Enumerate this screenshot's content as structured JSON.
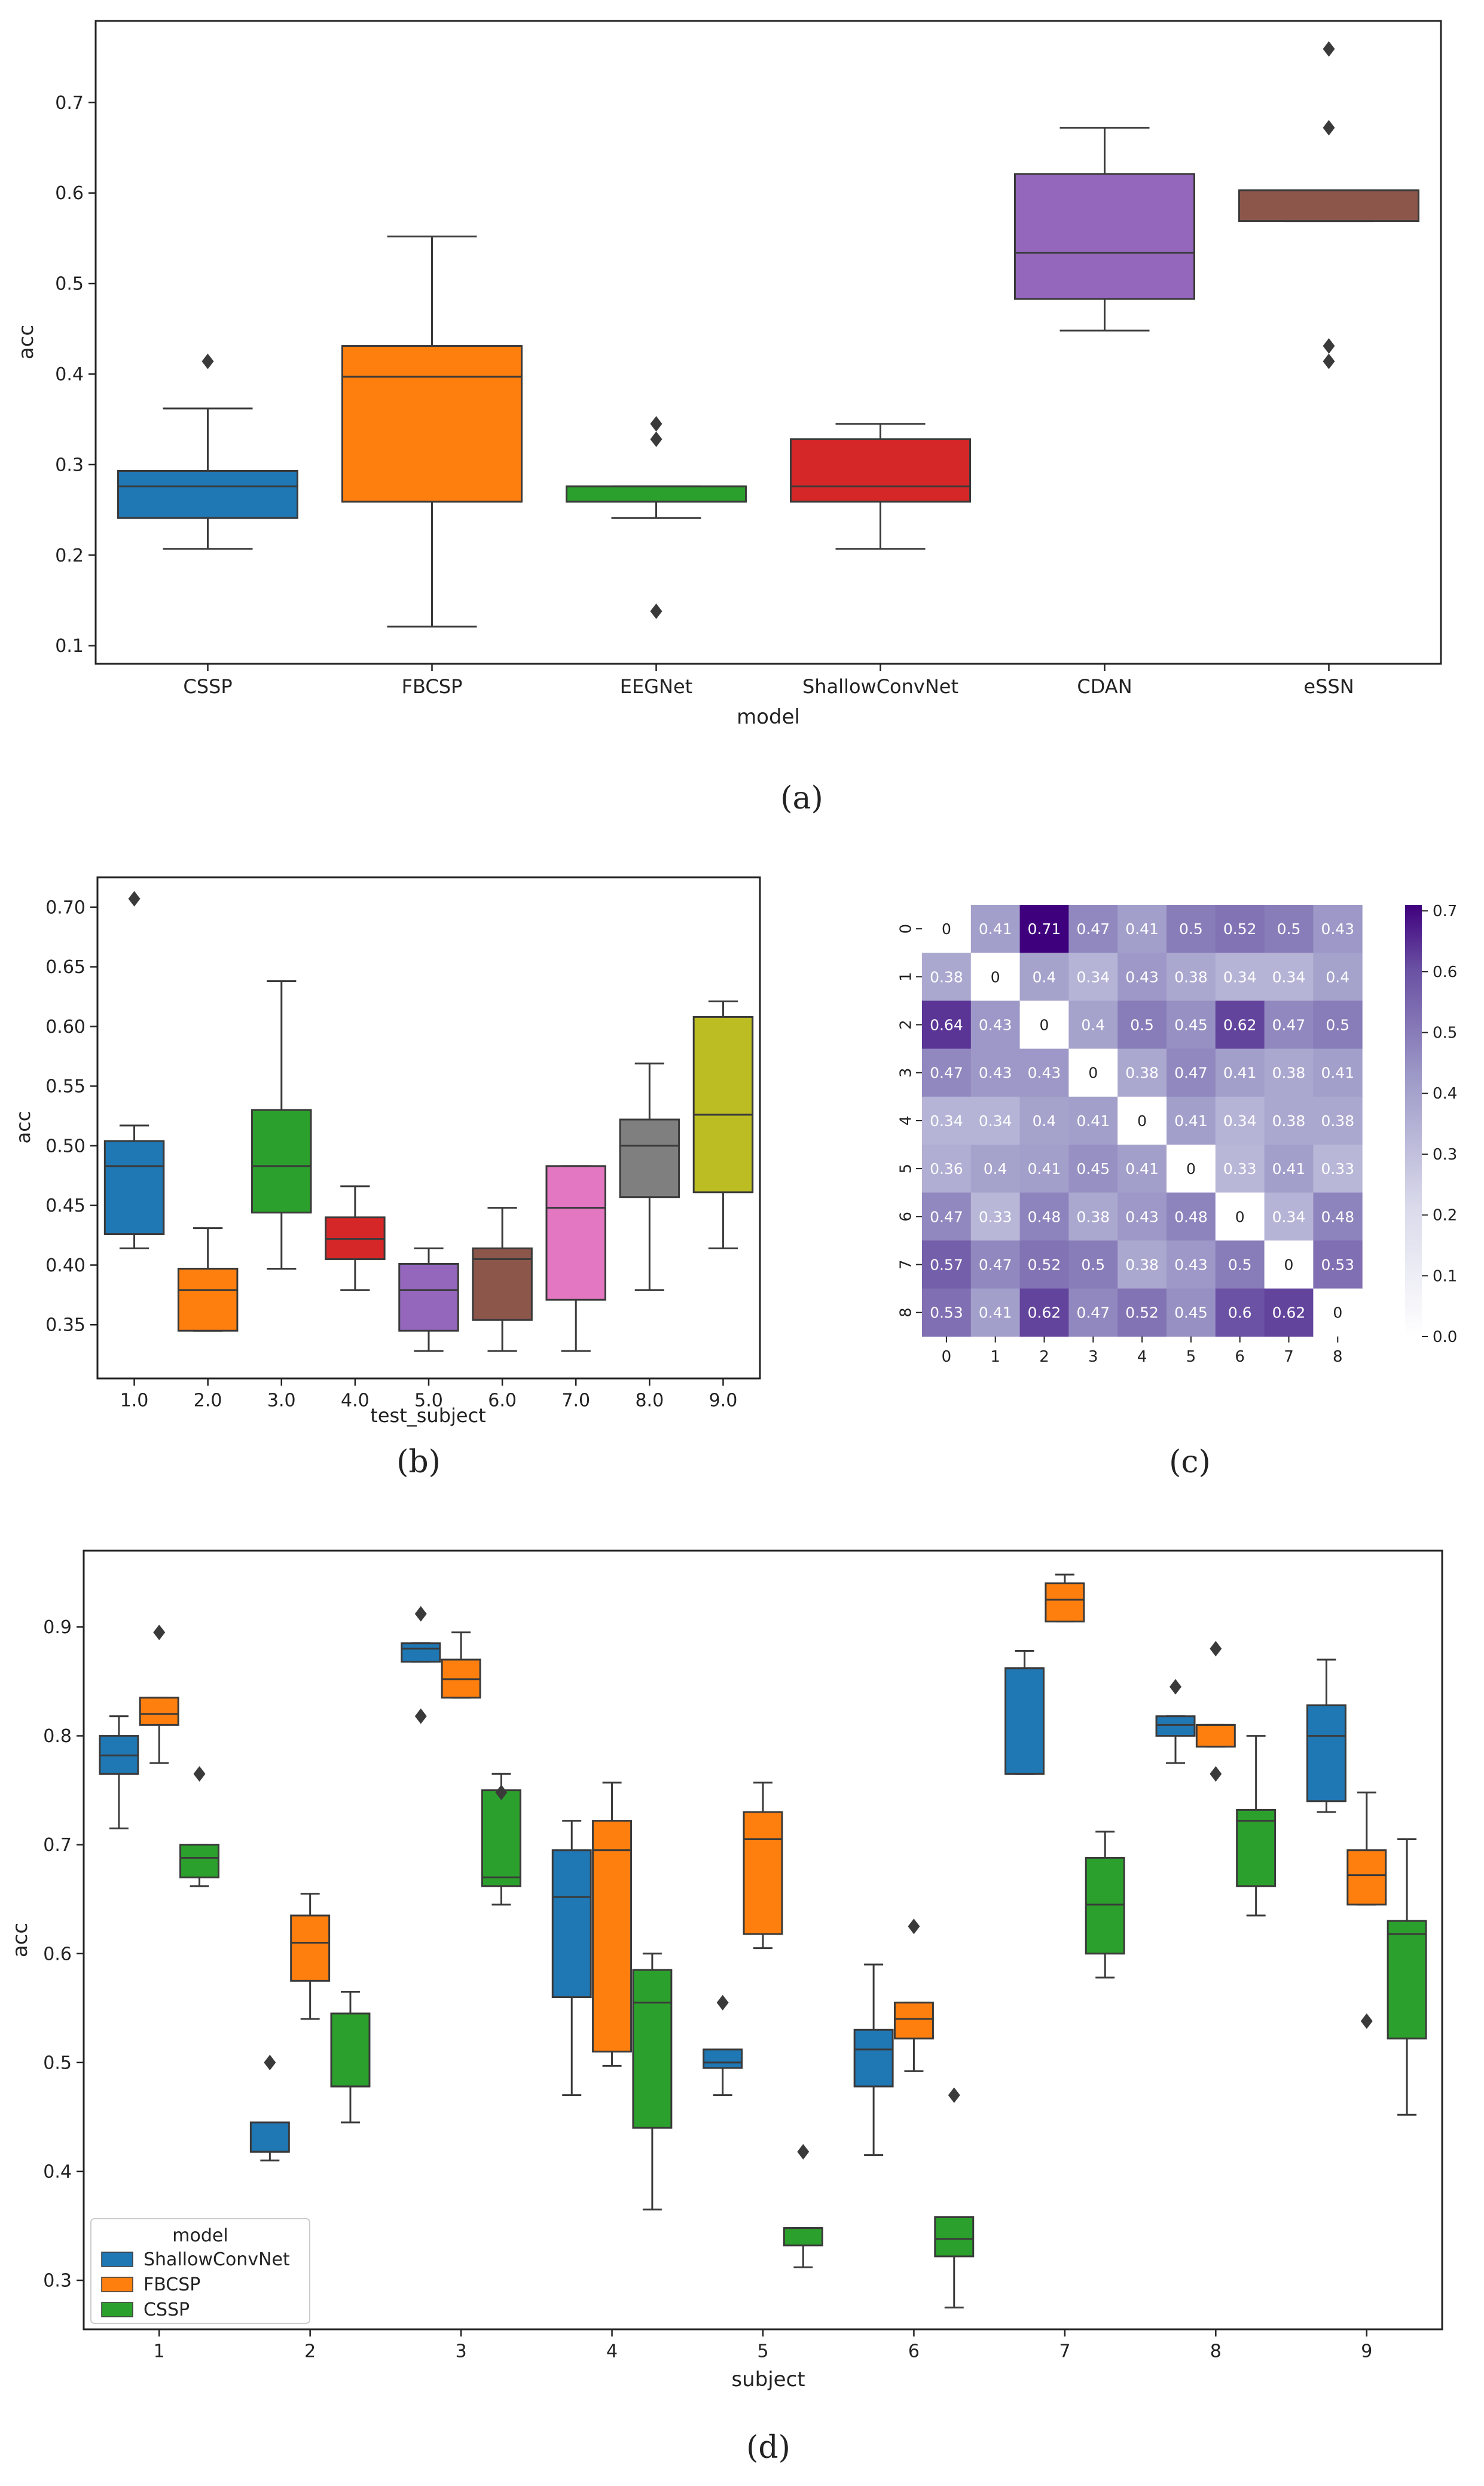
{
  "colors": {
    "blue": "#1f77b4",
    "orange": "#ff7f0e",
    "green": "#2ca02c",
    "red": "#d62728",
    "purple": "#9467bd",
    "brown": "#8c564b",
    "pink": "#e377c2",
    "gray": "#7f7f7f",
    "olive": "#bcbd22",
    "heat_low": "#ffffff",
    "heat_high": "#3f007d"
  },
  "chart_data": [
    {
      "id": "a",
      "type": "box",
      "caption": "(a)",
      "xlabel": "model",
      "ylabel": "acc",
      "ylim": [
        0.08,
        0.79
      ],
      "yticks": [
        "0.1",
        "0.2",
        "0.3",
        "0.4",
        "0.5",
        "0.6",
        "0.7"
      ],
      "categories": [
        "CSSP",
        "FBCSP",
        "EEGNet",
        "ShallowConvNet",
        "CDAN",
        "eSSN"
      ],
      "boxes": [
        {
          "category": "CSSP",
          "color": "blue",
          "whisker_low": 0.207,
          "q1": 0.241,
          "median": 0.276,
          "q3": 0.293,
          "whisker_high": 0.362,
          "outliers": [
            0.414
          ]
        },
        {
          "category": "FBCSP",
          "color": "orange",
          "whisker_low": 0.121,
          "q1": 0.259,
          "median": 0.397,
          "q3": 0.431,
          "whisker_high": 0.552,
          "outliers": []
        },
        {
          "category": "EEGNet",
          "color": "green",
          "whisker_low": 0.241,
          "q1": 0.259,
          "median": 0.276,
          "q3": 0.276,
          "whisker_high": 0.276,
          "outliers": [
            0.138,
            0.328,
            0.345
          ]
        },
        {
          "category": "ShallowConvNet",
          "color": "red",
          "whisker_low": 0.207,
          "q1": 0.259,
          "median": 0.276,
          "q3": 0.328,
          "whisker_high": 0.345,
          "outliers": []
        },
        {
          "category": "CDAN",
          "color": "purple",
          "whisker_low": 0.448,
          "q1": 0.483,
          "median": 0.534,
          "q3": 0.621,
          "whisker_high": 0.672,
          "outliers": []
        },
        {
          "category": "eSSN",
          "color": "brown",
          "whisker_low": 0.569,
          "q1": 0.569,
          "median": 0.603,
          "q3": 0.603,
          "whisker_high": 0.603,
          "outliers": [
            0.414,
            0.431,
            0.672,
            0.759
          ]
        }
      ]
    },
    {
      "id": "b",
      "type": "box",
      "caption": "(b)",
      "xlabel": "test_subject",
      "ylabel": "acc",
      "ylim": [
        0.305,
        0.725
      ],
      "yticks": [
        "0.35",
        "0.40",
        "0.45",
        "0.50",
        "0.55",
        "0.60",
        "0.65",
        "0.70"
      ],
      "categories": [
        "1.0",
        "2.0",
        "3.0",
        "4.0",
        "5.0",
        "6.0",
        "7.0",
        "8.0",
        "9.0"
      ],
      "boxes": [
        {
          "category": "1.0",
          "color": "blue",
          "whisker_low": 0.414,
          "q1": 0.426,
          "median": 0.483,
          "q3": 0.504,
          "whisker_high": 0.517,
          "outliers": [
            0.707
          ]
        },
        {
          "category": "2.0",
          "color": "orange",
          "whisker_low": 0.345,
          "q1": 0.345,
          "median": 0.379,
          "q3": 0.397,
          "whisker_high": 0.431,
          "outliers": []
        },
        {
          "category": "3.0",
          "color": "green",
          "whisker_low": 0.397,
          "q1": 0.444,
          "median": 0.483,
          "q3": 0.53,
          "whisker_high": 0.638,
          "outliers": []
        },
        {
          "category": "4.0",
          "color": "red",
          "whisker_low": 0.379,
          "q1": 0.405,
          "median": 0.422,
          "q3": 0.44,
          "whisker_high": 0.466,
          "outliers": []
        },
        {
          "category": "5.0",
          "color": "purple",
          "whisker_low": 0.328,
          "q1": 0.345,
          "median": 0.379,
          "q3": 0.401,
          "whisker_high": 0.414,
          "outliers": []
        },
        {
          "category": "6.0",
          "color": "brown",
          "whisker_low": 0.328,
          "q1": 0.354,
          "median": 0.405,
          "q3": 0.414,
          "whisker_high": 0.448,
          "outliers": []
        },
        {
          "category": "7.0",
          "color": "pink",
          "whisker_low": 0.328,
          "q1": 0.371,
          "median": 0.448,
          "q3": 0.483,
          "whisker_high": 0.483,
          "outliers": []
        },
        {
          "category": "8.0",
          "color": "gray",
          "whisker_low": 0.379,
          "q1": 0.457,
          "median": 0.5,
          "q3": 0.522,
          "whisker_high": 0.569,
          "outliers": []
        },
        {
          "category": "9.0",
          "color": "olive",
          "whisker_low": 0.414,
          "q1": 0.461,
          "median": 0.526,
          "q3": 0.608,
          "whisker_high": 0.621,
          "outliers": []
        }
      ]
    },
    {
      "id": "c",
      "type": "heatmap",
      "caption": "(c)",
      "xticks": [
        "0",
        "1",
        "2",
        "3",
        "4",
        "5",
        "6",
        "7",
        "8"
      ],
      "yticks": [
        "0",
        "1",
        "2",
        "3",
        "4",
        "5",
        "6",
        "7",
        "8"
      ],
      "vmin": 0.0,
      "vmax": 0.71,
      "colorbar_ticks": [
        "0.0",
        "0.1",
        "0.2",
        "0.3",
        "0.4",
        "0.5",
        "0.6",
        "0.7"
      ],
      "labels": [
        [
          "0",
          "0.41",
          "0.71",
          "0.47",
          "0.41",
          "0.5",
          "0.52",
          "0.5",
          "0.43"
        ],
        [
          "0.38",
          "0",
          "0.4",
          "0.34",
          "0.43",
          "0.38",
          "0.34",
          "0.34",
          "0.4"
        ],
        [
          "0.64",
          "0.43",
          "0",
          "0.4",
          "0.5",
          "0.45",
          "0.62",
          "0.47",
          "0.5"
        ],
        [
          "0.47",
          "0.43",
          "0.43",
          "0",
          "0.38",
          "0.47",
          "0.41",
          "0.38",
          "0.41"
        ],
        [
          "0.34",
          "0.34",
          "0.4",
          "0.41",
          "0",
          "0.41",
          "0.34",
          "0.38",
          "0.38"
        ],
        [
          "0.36",
          "0.4",
          "0.41",
          "0.45",
          "0.41",
          "0",
          "0.33",
          "0.41",
          "0.33"
        ],
        [
          "0.47",
          "0.33",
          "0.48",
          "0.38",
          "0.43",
          "0.48",
          "0",
          "0.34",
          "0.48"
        ],
        [
          "0.57",
          "0.47",
          "0.52",
          "0.5",
          "0.38",
          "0.43",
          "0.5",
          "0",
          "0.53"
        ],
        [
          "0.53",
          "0.41",
          "0.62",
          "0.47",
          "0.52",
          "0.45",
          "0.6",
          "0.62",
          "0"
        ]
      ]
    },
    {
      "id": "d",
      "type": "grouped_box",
      "caption": "(d)",
      "xlabel": "subject",
      "ylabel": "acc",
      "ylim": [
        0.255,
        0.97
      ],
      "yticks": [
        "0.3",
        "0.4",
        "0.5",
        "0.6",
        "0.7",
        "0.8",
        "0.9"
      ],
      "categories": [
        "1",
        "2",
        "3",
        "4",
        "5",
        "6",
        "7",
        "8",
        "9"
      ],
      "legend": {
        "title": "model",
        "position": "lower-left",
        "entries": [
          "ShallowConvNet",
          "FBCSP",
          "CSSP"
        ]
      },
      "series": [
        {
          "name": "ShallowConvNet",
          "color": "blue",
          "boxes": [
            {
              "whisker_low": 0.715,
              "q1": 0.765,
              "median": 0.782,
              "q3": 0.8,
              "whisker_high": 0.818,
              "outliers": []
            },
            {
              "whisker_low": 0.41,
              "q1": 0.418,
              "median": 0.418,
              "q3": 0.445,
              "whisker_high": 0.445,
              "outliers": [
                0.5
              ]
            },
            {
              "whisker_low": 0.868,
              "q1": 0.868,
              "median": 0.88,
              "q3": 0.885,
              "whisker_high": 0.885,
              "outliers": [
                0.818,
                0.912
              ]
            },
            {
              "whisker_low": 0.47,
              "q1": 0.56,
              "median": 0.652,
              "q3": 0.695,
              "whisker_high": 0.722,
              "outliers": []
            },
            {
              "whisker_low": 0.47,
              "q1": 0.495,
              "median": 0.5,
              "q3": 0.512,
              "whisker_high": 0.512,
              "outliers": [
                0.555
              ]
            },
            {
              "whisker_low": 0.415,
              "q1": 0.478,
              "median": 0.512,
              "q3": 0.53,
              "whisker_high": 0.59,
              "outliers": []
            },
            {
              "whisker_low": 0.765,
              "q1": 0.765,
              "median": 0.862,
              "q3": 0.862,
              "whisker_high": 0.878,
              "outliers": []
            },
            {
              "whisker_low": 0.775,
              "q1": 0.8,
              "median": 0.81,
              "q3": 0.818,
              "whisker_high": 0.818,
              "outliers": [
                0.845
              ]
            },
            {
              "whisker_low": 0.73,
              "q1": 0.74,
              "median": 0.8,
              "q3": 0.828,
              "whisker_high": 0.87,
              "outliers": []
            }
          ]
        },
        {
          "name": "FBCSP",
          "color": "orange",
          "boxes": [
            {
              "whisker_low": 0.775,
              "q1": 0.81,
              "median": 0.82,
              "q3": 0.835,
              "whisker_high": 0.835,
              "outliers": [
                0.895
              ]
            },
            {
              "whisker_low": 0.54,
              "q1": 0.575,
              "median": 0.61,
              "q3": 0.635,
              "whisker_high": 0.655,
              "outliers": []
            },
            {
              "whisker_low": 0.835,
              "q1": 0.835,
              "median": 0.852,
              "q3": 0.87,
              "whisker_high": 0.895,
              "outliers": []
            },
            {
              "whisker_low": 0.497,
              "q1": 0.51,
              "median": 0.695,
              "q3": 0.722,
              "whisker_high": 0.757,
              "outliers": []
            },
            {
              "whisker_low": 0.605,
              "q1": 0.618,
              "median": 0.705,
              "q3": 0.73,
              "whisker_high": 0.757,
              "outliers": []
            },
            {
              "whisker_low": 0.492,
              "q1": 0.522,
              "median": 0.54,
              "q3": 0.555,
              "whisker_high": 0.555,
              "outliers": [
                0.625
              ]
            },
            {
              "whisker_low": 0.905,
              "q1": 0.905,
              "median": 0.925,
              "q3": 0.94,
              "whisker_high": 0.948,
              "outliers": []
            },
            {
              "whisker_low": 0.79,
              "q1": 0.79,
              "median": 0.81,
              "q3": 0.81,
              "whisker_high": 0.81,
              "outliers": [
                0.765,
                0.88
              ]
            },
            {
              "whisker_low": 0.645,
              "q1": 0.645,
              "median": 0.672,
              "q3": 0.695,
              "whisker_high": 0.748,
              "outliers": [
                0.538
              ]
            }
          ]
        },
        {
          "name": "CSSP",
          "color": "green",
          "boxes": [
            {
              "whisker_low": 0.662,
              "q1": 0.67,
              "median": 0.688,
              "q3": 0.7,
              "whisker_high": 0.7,
              "outliers": [
                0.765
              ]
            },
            {
              "whisker_low": 0.445,
              "q1": 0.478,
              "median": 0.478,
              "q3": 0.545,
              "whisker_high": 0.565,
              "outliers": []
            },
            {
              "whisker_low": 0.645,
              "q1": 0.662,
              "median": 0.67,
              "q3": 0.75,
              "whisker_high": 0.765,
              "outliers": [
                0.748
              ]
            },
            {
              "whisker_low": 0.365,
              "q1": 0.44,
              "median": 0.555,
              "q3": 0.585,
              "whisker_high": 0.6,
              "outliers": []
            },
            {
              "whisker_low": 0.312,
              "q1": 0.332,
              "median": 0.348,
              "q3": 0.348,
              "whisker_high": 0.348,
              "outliers": [
                0.418
              ]
            },
            {
              "whisker_low": 0.275,
              "q1": 0.322,
              "median": 0.338,
              "q3": 0.358,
              "whisker_high": 0.358,
              "outliers": [
                0.47
              ]
            },
            {
              "whisker_low": 0.578,
              "q1": 0.6,
              "median": 0.645,
              "q3": 0.688,
              "whisker_high": 0.712,
              "outliers": []
            },
            {
              "whisker_low": 0.635,
              "q1": 0.662,
              "median": 0.722,
              "q3": 0.732,
              "whisker_high": 0.8,
              "outliers": []
            },
            {
              "whisker_low": 0.452,
              "q1": 0.522,
              "median": 0.618,
              "q3": 0.63,
              "whisker_high": 0.705,
              "outliers": []
            }
          ]
        }
      ]
    }
  ]
}
